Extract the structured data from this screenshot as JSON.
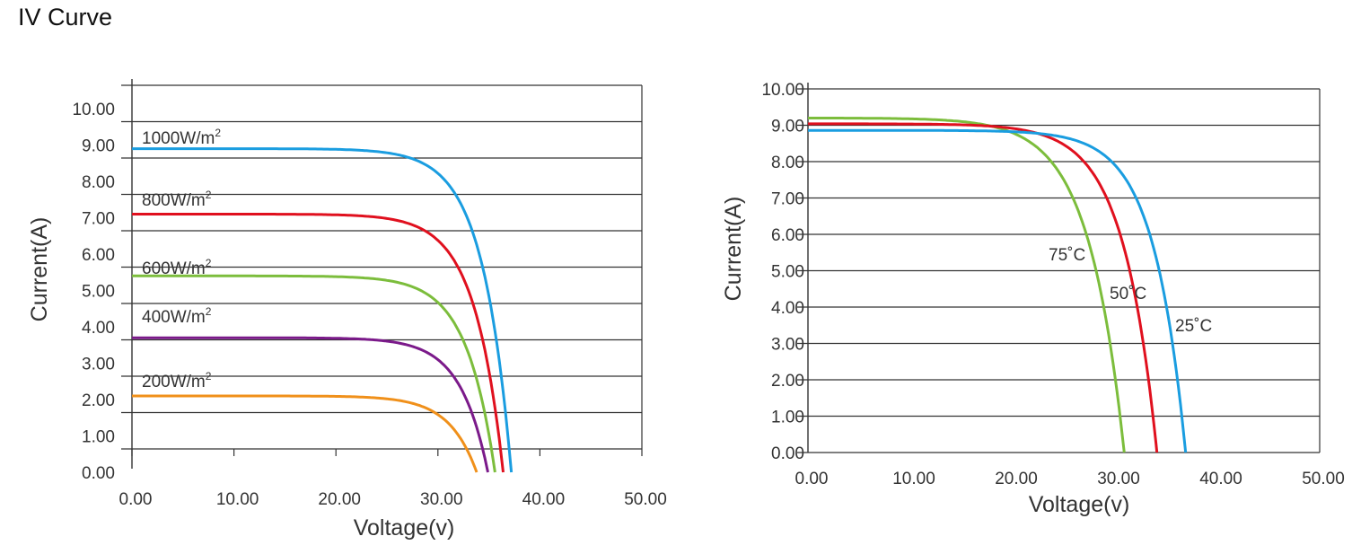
{
  "page_title": "IV Curve",
  "chart_data": [
    {
      "type": "line",
      "title": "",
      "xlabel": "Voltage(v)",
      "ylabel": "Current(A)",
      "xlim": [
        0,
        50
      ],
      "ylim": [
        0,
        10
      ],
      "x_ticks": [
        "0.00",
        "10.00",
        "20.00",
        "30.00",
        "40.00",
        "50.00"
      ],
      "y_ticks": [
        "0.00",
        "1.00",
        "2.00",
        "3.00",
        "4.00",
        "5.00",
        "6.00",
        "7.00",
        "8.00",
        "9.00",
        "10.00"
      ],
      "grid": true,
      "series": [
        {
          "name": "1000W/m²",
          "label_main": "1000W/m",
          "label_sup": "2",
          "color": "#1a9de0",
          "isc": 8.9,
          "voc": 37.2,
          "knee": 2.8
        },
        {
          "name": "800W/m²",
          "label_main": "800W/m",
          "label_sup": "2",
          "color": "#e0101e",
          "isc": 7.1,
          "voc": 36.4,
          "knee": 2.8
        },
        {
          "name": "600W/m²",
          "label_main": "600W/m",
          "label_sup": "2",
          "color": "#7cbd3c",
          "isc": 5.4,
          "voc": 35.6,
          "knee": 2.8
        },
        {
          "name": "400W/m²",
          "label_main": "400W/m",
          "label_sup": "2",
          "color": "#7b1a8a",
          "isc": 3.7,
          "voc": 34.9,
          "knee": 2.7
        },
        {
          "name": "200W/m²",
          "label_main": "200W/m",
          "label_sup": "2",
          "color": "#f0901a",
          "isc": 2.1,
          "voc": 33.8,
          "knee": 2.7
        }
      ]
    },
    {
      "type": "line",
      "title": "",
      "xlabel": "Voltage(v)",
      "ylabel": "Current(A)",
      "xlim": [
        0,
        50
      ],
      "ylim": [
        0,
        10
      ],
      "x_ticks": [
        "0.00",
        "10.00",
        "20.00",
        "30.00",
        "40.00",
        "50.00"
      ],
      "y_ticks": [
        "0.00",
        "1.00",
        "2.00",
        "3.00",
        "4.00",
        "5.00",
        "6.00",
        "7.00",
        "8.00",
        "9.00",
        "10.00"
      ],
      "grid": true,
      "series": [
        {
          "name": "75˚C",
          "color": "#7cbd3c",
          "isc": 9.2,
          "voc": 30.9,
          "knee": 3.5
        },
        {
          "name": "50˚C",
          "color": "#e0101e",
          "isc": 9.04,
          "voc": 34.1,
          "knee": 3.3
        },
        {
          "name": "25˚C",
          "color": "#1a9de0",
          "isc": 8.86,
          "voc": 36.9,
          "knee": 3.1
        }
      ]
    }
  ]
}
